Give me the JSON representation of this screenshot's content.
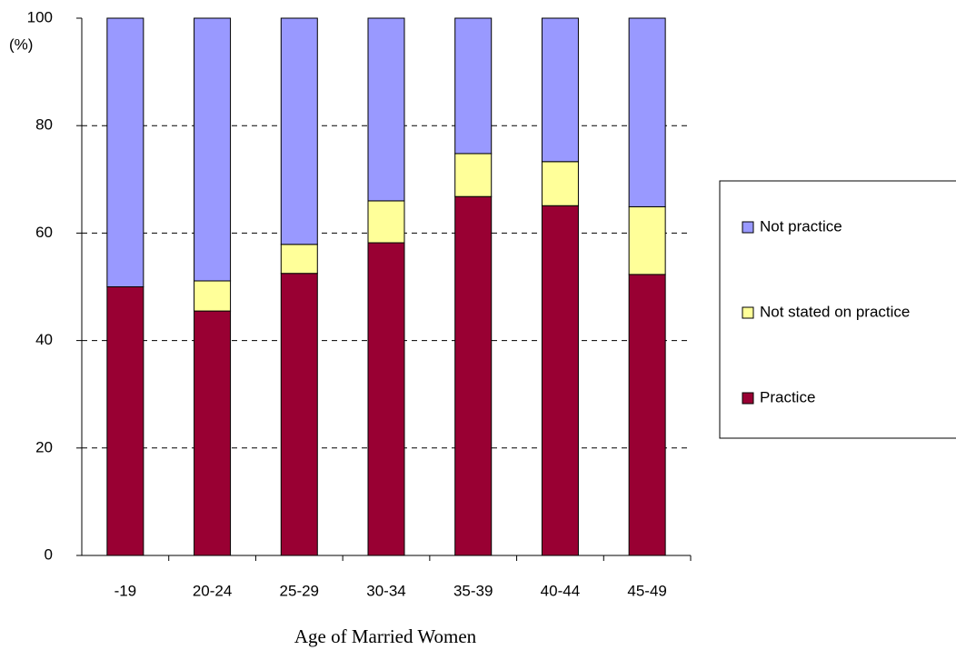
{
  "chart_data": {
    "type": "stacked_bar",
    "x_label": "Age of Married Women",
    "y_label": "(%)",
    "categories": [
      "-19",
      "20-24",
      "25-29",
      "30-34",
      "35-39",
      "40-44",
      "45-49"
    ],
    "series": [
      {
        "name": "Practice",
        "color": "#990033",
        "values": [
          50.0,
          45.5,
          52.5,
          58.2,
          66.8,
          65.1,
          52.3
        ]
      },
      {
        "name": "Not stated on practice",
        "color": "#ffff99",
        "values": [
          0.0,
          5.6,
          5.4,
          7.8,
          8.0,
          8.2,
          12.6
        ]
      },
      {
        "name": "Not practice",
        "color": "#9999ff",
        "values": [
          50.0,
          48.9,
          42.1,
          34.0,
          25.2,
          26.7,
          35.1
        ]
      }
    ],
    "ylim": [
      0,
      100
    ],
    "yticks": [
      0,
      20,
      40,
      60,
      80,
      100
    ],
    "grid": true,
    "legend": "right"
  }
}
